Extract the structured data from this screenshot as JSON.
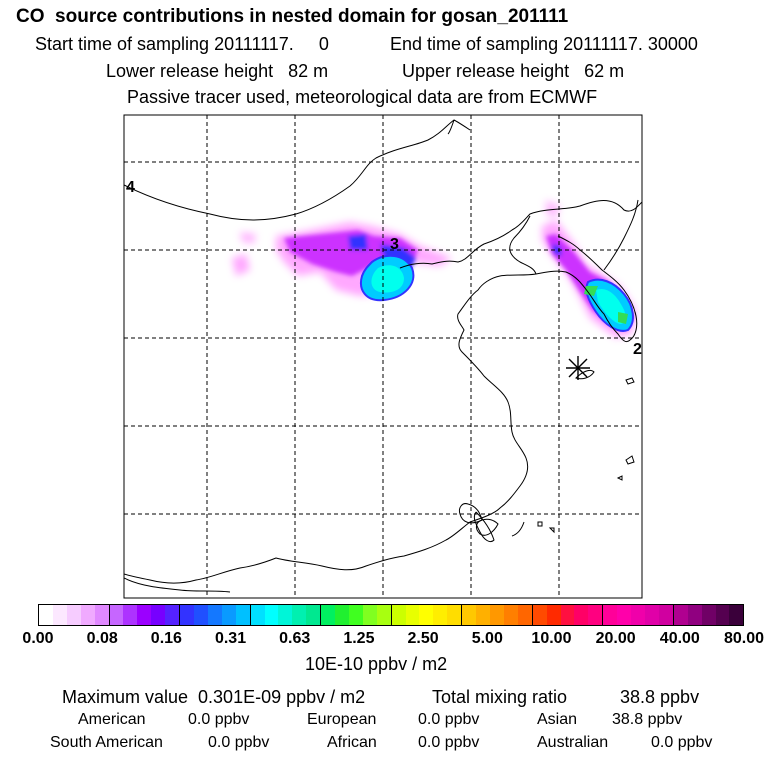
{
  "header": {
    "title": "CO  source contributions in nested domain for gosan_201111",
    "start_label": "Start time of sampling 20111117.     0",
    "end_label": "End time of sampling 20111117. 30000",
    "lower_label": "Lower release height   82 m",
    "upper_label": "Upper release height   62 m",
    "note": "Passive tracer used, meteorological data are from ECMWF"
  },
  "map": {
    "grid_labels": {
      "left": "4",
      "top": "3",
      "right": "2"
    },
    "receptor_marker": "asterisk",
    "plume_colors": [
      "#ff99ff",
      "#cc33ff",
      "#3333ff",
      "#00ccff",
      "#00ffee",
      "#33dd55"
    ]
  },
  "colorbar": {
    "colors": [
      "#ffffff",
      "#fce8ff",
      "#f6ccff",
      "#f0aaff",
      "#e088ff",
      "#c666ff",
      "#ad33ff",
      "#9b00ff",
      "#7700ff",
      "#5522ff",
      "#3333ff",
      "#2050ff",
      "#1478ff",
      "#0a9aff",
      "#00c0ff",
      "#00e0ff",
      "#00ffff",
      "#00f5d8",
      "#00f0b0",
      "#00e890",
      "#00f060",
      "#20f030",
      "#40ff20",
      "#80ff20",
      "#a8ff10",
      "#ccff00",
      "#e8ff00",
      "#ffff00",
      "#ffee00",
      "#ffdd00",
      "#ffc800",
      "#ffb000",
      "#ff9800",
      "#ff7f00",
      "#ff6600",
      "#ff4a00",
      "#ff2a00",
      "#ff1040",
      "#ff0066",
      "#ff0080",
      "#ff0099",
      "#ff00aa",
      "#f000aa",
      "#e000a8",
      "#d000a0",
      "#b00090",
      "#900080",
      "#700066",
      "#550050",
      "#3a003a"
    ],
    "tick_labels": [
      "0.00",
      "0.08",
      "0.16",
      "0.31",
      "0.63",
      "1.25",
      "2.50",
      "5.00",
      "10.00",
      "20.00",
      "40.00",
      "80.00"
    ],
    "units": "10E-10 ppbv / m2"
  },
  "footer": {
    "max_label": "Maximum value  0.301E-09 ppbv / m2",
    "total_label": "Total mixing ratio",
    "total_value": "38.8 ppbv",
    "regions": [
      {
        "name": "American",
        "value": "0.0 ppbv"
      },
      {
        "name": "European",
        "value": "0.0 ppbv"
      },
      {
        "name": "Asian",
        "value": "38.8 ppbv"
      },
      {
        "name": "South American",
        "value": "0.0 ppbv"
      },
      {
        "name": "African",
        "value": "0.0 ppbv"
      },
      {
        "name": "Australian",
        "value": "0.0 ppbv"
      }
    ]
  }
}
